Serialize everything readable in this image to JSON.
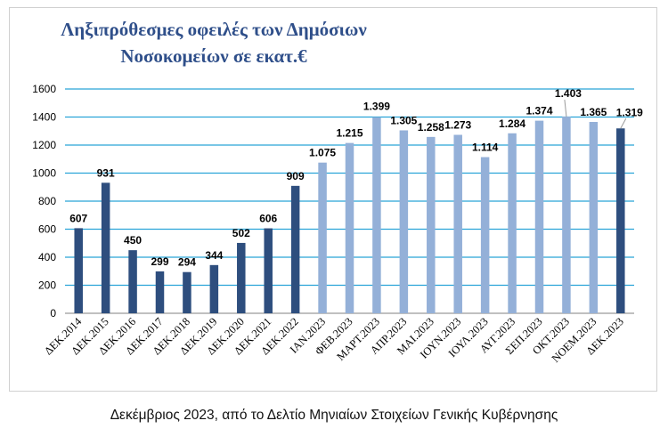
{
  "chart_data": {
    "type": "bar",
    "title_line1": "Ληξιπρόθεσμες οφειλές των Δημόσιων",
    "title_line2": "Νοσοκομείων σε εκατ.€",
    "xlabel": "",
    "ylabel": "",
    "ylim": [
      0,
      1600
    ],
    "yticks": [
      "0",
      "200",
      "400",
      "600",
      "800",
      "1000",
      "1200",
      "1400",
      "1600"
    ],
    "grid": true,
    "legend": "none",
    "categories": [
      "ΔΕΚ.2014",
      "ΔΕΚ.2015",
      "ΔΕΚ.2016",
      "ΔΕΚ.2017",
      "ΔΕΚ.2018",
      "ΔΕΚ.2019",
      "ΔΕΚ.2020",
      "ΔΕΚ.2021",
      "ΔΕΚ.2022",
      "ΙΑΝ.2023",
      "ΦΕΒ.2023",
      "ΜΑΡΤ.2023",
      "ΑΠΡ.2023",
      "ΜΑΙ.2023",
      "ΙΟΥΝ.2023",
      "ΙΟΥΛ.2023",
      "ΑΥΓ.2023",
      "ΣΕΠ.2023",
      "ΟΚΤ.2023",
      "ΝΟΕΜ.2023",
      "ΔΕΚ.2023"
    ],
    "values": [
      607,
      931,
      450,
      299,
      294,
      344,
      502,
      606,
      909,
      1075,
      1215,
      1399,
      1305,
      1258,
      1273,
      1114,
      1284,
      1374,
      1403,
      1365,
      1319
    ],
    "value_labels": [
      "607",
      "931",
      "450",
      "299",
      "294",
      "344",
      "502",
      "606",
      "909",
      "1.075",
      "1.215",
      "1.399",
      "1.305",
      "1.258",
      "1.273",
      "1.114",
      "1.284",
      "1.374",
      "1.403",
      "1.365",
      "1.319"
    ],
    "colors": [
      "#2e4e7e",
      "#2e4e7e",
      "#2e4e7e",
      "#2e4e7e",
      "#2e4e7e",
      "#2e4e7e",
      "#2e4e7e",
      "#2e4e7e",
      "#2e4e7e",
      "#94b0d8",
      "#94b0d8",
      "#94b0d8",
      "#94b0d8",
      "#94b0d8",
      "#94b0d8",
      "#94b0d8",
      "#94b0d8",
      "#94b0d8",
      "#94b0d8",
      "#94b0d8",
      "#2e4e7e"
    ],
    "gridline_color": "#29a4d8"
  },
  "caption": "Δεκέμβριος 2023, από το Δελτίο Μηνιαίων Στοιχείων Γενικής Κυβέρνησης"
}
